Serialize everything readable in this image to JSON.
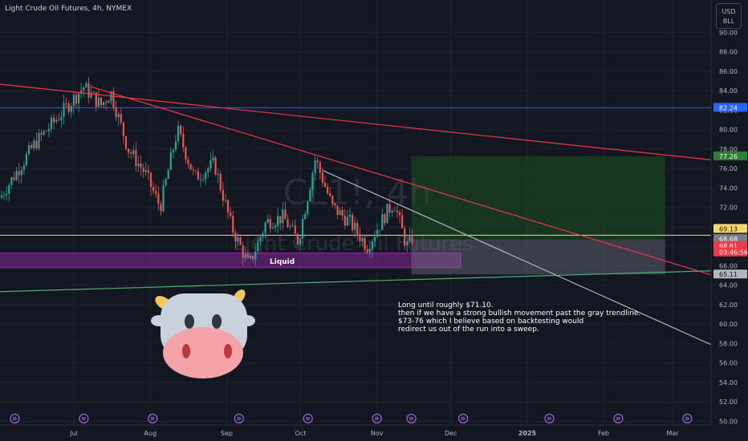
{
  "header": {
    "title": "Light Crude Oil Futures, 4h, NYMEX"
  },
  "unit_menu": {
    "currency": "USD",
    "unit": "BLL"
  },
  "watermark": {
    "symbol": "CL1!, 4h",
    "name": "Light Crude Oil Futures"
  },
  "annotation": {
    "lines": [
      "Long until roughly $71.10.",
      "then if we have a strong bullish movement past the gray trendline.",
      "$73-76 which I believe based on backtesting would",
      "redirect us out of the run into a sweep."
    ]
  },
  "liquid_label": "Liquid",
  "colors": {
    "background": "#131722",
    "up": "#26a69a",
    "down": "#ef5350",
    "red_trend": "#f23645",
    "blue_level": "#2962ff",
    "yellow_level": "#f7d66b",
    "green_trend": "#4caf6e",
    "gray_trend": "#b2b5be",
    "liquid_zone": "#9c27b0",
    "profit_zone": "#1b5e20",
    "loss_zone": "#787b86"
  },
  "chart_data": {
    "type": "candlestick",
    "timeframe": "4h",
    "ylim": [
      48.8,
      92.5
    ],
    "y_ticks": [
      50,
      52,
      54,
      56,
      58,
      60,
      62,
      64,
      66,
      68,
      70,
      72,
      74,
      76,
      78,
      80,
      82,
      84,
      86,
      88,
      90
    ],
    "y_tick_labels": [
      "50.00",
      "52.00",
      "54.00",
      "56.00",
      "58.00",
      "60.00",
      "62.00",
      "64.00",
      "66.00",
      "68.00",
      "70.00",
      "72.00",
      "74.00",
      "76.00",
      "78.00",
      "80.00",
      "82.00",
      "84.00",
      "86.00",
      "88.00",
      "90.00"
    ],
    "x_labels": [
      "Jul",
      "Aug",
      "Sep",
      "Oct",
      "Nov",
      "Dec",
      "2025",
      "Feb",
      "Mar"
    ],
    "price_anchors": [
      [
        "2024-06-01",
        73.0
      ],
      [
        "2024-06-15",
        78.5
      ],
      [
        "2024-06-27",
        82.0
      ],
      [
        "2024-07-05",
        84.4
      ],
      [
        "2024-07-12",
        82.5
      ],
      [
        "2024-07-16",
        83.8
      ],
      [
        "2024-07-23",
        78.0
      ],
      [
        "2024-07-30",
        75.5
      ],
      [
        "2024-08-05",
        72.0
      ],
      [
        "2024-08-12",
        80.0
      ],
      [
        "2024-08-19",
        75.0
      ],
      [
        "2024-08-27",
        76.5
      ],
      [
        "2024-09-03",
        70.0
      ],
      [
        "2024-09-10",
        66.0
      ],
      [
        "2024-09-17",
        70.5
      ],
      [
        "2024-09-24",
        71.0
      ],
      [
        "2024-09-30",
        68.5
      ],
      [
        "2024-10-07",
        77.0
      ],
      [
        "2024-10-14",
        72.0
      ],
      [
        "2024-10-21",
        70.5
      ],
      [
        "2024-10-28",
        68.0
      ],
      [
        "2024-11-05",
        71.5
      ],
      [
        "2024-11-08",
        72.5
      ],
      [
        "2024-11-13",
        68.0
      ],
      [
        "2024-11-16",
        69.0
      ]
    ],
    "price_labels": [
      {
        "value": 82.24,
        "label": "82.24",
        "color": "#2962ff"
      },
      {
        "value": 77.26,
        "label": "77.26",
        "color": "#2e7d32"
      },
      {
        "value": 69.13,
        "label": "69.13",
        "color": "#f7d66b"
      },
      {
        "value": 68.68,
        "label": "68.68",
        "color": "#787b86"
      },
      {
        "value": 68.61,
        "label": "68.61",
        "color": "#f23645"
      },
      {
        "value": 68.61,
        "label": "03:46:56",
        "color": "#f23645"
      },
      {
        "value": 65.11,
        "label": "65.11",
        "color": "#b2b5be"
      }
    ],
    "levels": [
      {
        "name": "blue-level",
        "value": 82.24
      },
      {
        "name": "yellow-level",
        "value": 69.13
      }
    ],
    "trendlines": [
      {
        "name": "red-trend-upper",
        "from": [
          "2024-05-01",
          85.5
        ],
        "to": [
          "2025-03-20",
          76.8
        ]
      },
      {
        "name": "red-trend-lower",
        "from": [
          "2024-07-08",
          84.4
        ],
        "to": [
          "2025-03-20",
          64.8
        ]
      },
      {
        "name": "green-trend",
        "from": [
          "2024-05-01",
          63.1
        ],
        "to": [
          "2025-03-20",
          65.5
        ]
      },
      {
        "name": "gray-trend",
        "from": [
          "2024-10-10",
          75.8
        ],
        "to": [
          "2025-03-20",
          57.5
        ]
      }
    ],
    "zones": [
      {
        "name": "liquid-zone",
        "from": "2024-05-01",
        "to": "2024-12-05",
        "top": 67.3,
        "bottom": 65.8
      },
      {
        "name": "profit-zone",
        "from": "2024-11-15",
        "to": "2025-02-26",
        "top": 77.26,
        "bottom": 68.68
      },
      {
        "name": "loss-zone",
        "from": "2024-11-15",
        "to": "2025-02-26",
        "top": 68.68,
        "bottom": 65.11
      }
    ],
    "event_icon_dates": [
      "2024-06-07",
      "2024-07-05",
      "2024-08-02",
      "2024-09-06",
      "2024-10-04",
      "2024-11-01",
      "2024-11-15",
      "2024-12-06",
      "2025-01-10",
      "2025-02-07",
      "2025-03-07"
    ]
  }
}
